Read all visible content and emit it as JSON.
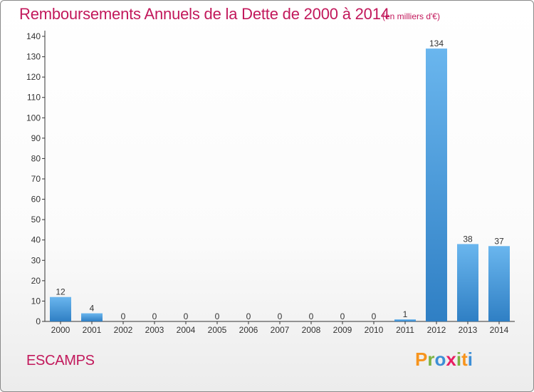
{
  "chart_data": {
    "type": "bar",
    "title": "Remboursements Annuels de la Dette de 2000 à 2014",
    "subtitle": "(en milliers d'€)",
    "categories": [
      "2000",
      "2001",
      "2002",
      "2003",
      "2004",
      "2005",
      "2006",
      "2007",
      "2008",
      "2009",
      "2010",
      "2011",
      "2012",
      "2013",
      "2014"
    ],
    "values": [
      12,
      4,
      0,
      0,
      0,
      0,
      0,
      0,
      0,
      0,
      0,
      1,
      134,
      38,
      37
    ],
    "ylim": [
      0,
      140
    ],
    "yticks": [
      0,
      10,
      20,
      30,
      40,
      50,
      60,
      70,
      80,
      90,
      100,
      110,
      120,
      130,
      140
    ],
    "grid": false,
    "bar_color": "#3d8fd6"
  },
  "commune": "ESCAMPS",
  "logo": {
    "letters": [
      "P",
      "r",
      "o",
      "x",
      "i",
      "t",
      "i"
    ],
    "colors": [
      "#f7941d",
      "#7cb342",
      "#3d8fd6",
      "#e91e63",
      "#7cb342",
      "#f7941d",
      "#3d8fd6"
    ]
  },
  "title_color": "#c2185b"
}
